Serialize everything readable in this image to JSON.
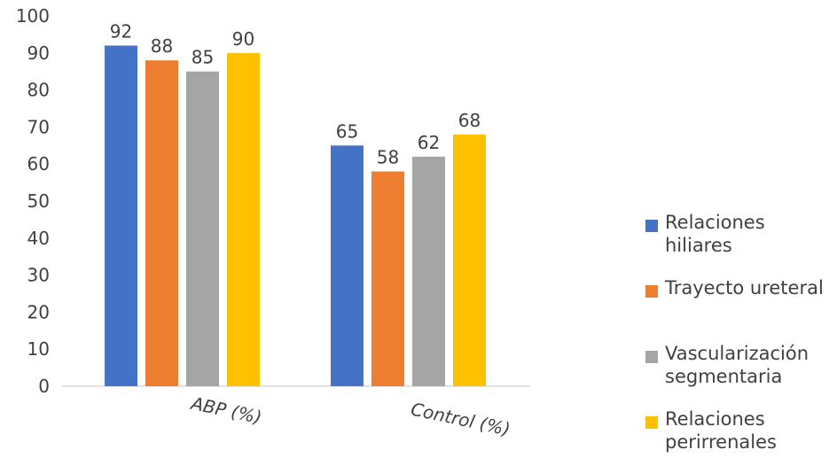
{
  "chart_data": {
    "type": "bar",
    "categories": [
      "ABP (%)",
      "Control (%)"
    ],
    "series": [
      {
        "name": "Relaciones hiliares",
        "color": "#4472C4",
        "values": [
          92,
          65
        ]
      },
      {
        "name": "Trayecto ureteral",
        "color": "#ED7D31",
        "values": [
          88,
          58
        ]
      },
      {
        "name": "Vascularización segmentaria",
        "color": "#A5A5A5",
        "values": [
          85,
          62
        ]
      },
      {
        "name": "Relaciones perirrenales",
        "color": "#FFC000",
        "values": [
          90,
          68
        ]
      }
    ],
    "yticks": [
      "0",
      "10",
      "20",
      "30",
      "40",
      "50",
      "60",
      "70",
      "80",
      "90",
      "100"
    ],
    "ylim": [
      0,
      100
    ],
    "grid": false,
    "legend_position": "right",
    "data_labels": true,
    "title": "",
    "xlabel": "",
    "ylabel": ""
  }
}
